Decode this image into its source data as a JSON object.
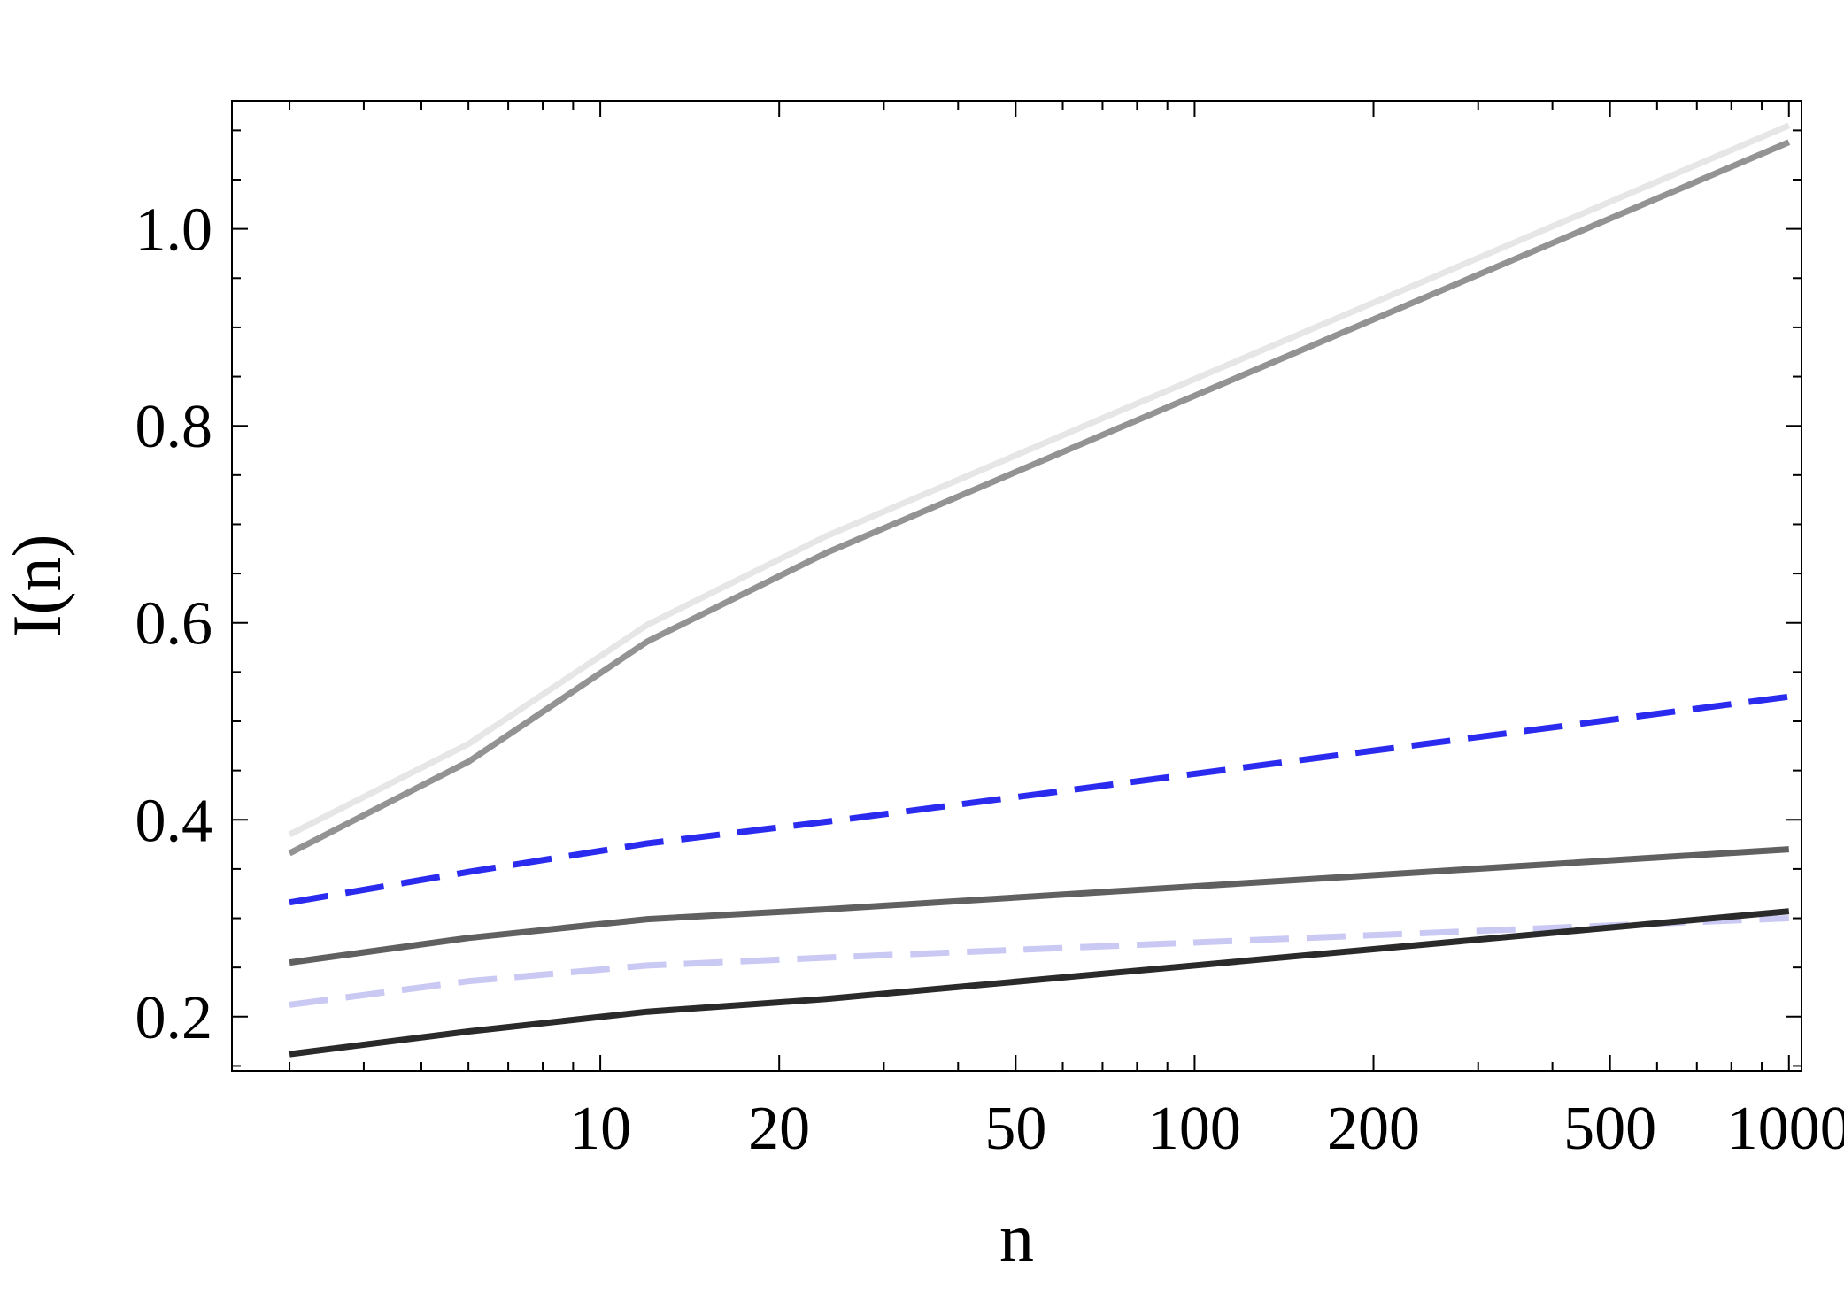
{
  "chart_data": {
    "type": "line",
    "title": "",
    "xlabel": "n",
    "ylabel": "I(n)",
    "x_scale": "log",
    "xlim": [
      2.4,
      1050
    ],
    "ylim": [
      0.145,
      1.13
    ],
    "grid": false,
    "x_ticks": [
      {
        "value": 10,
        "label": "10"
      },
      {
        "value": 20,
        "label": "20"
      },
      {
        "value": 50,
        "label": "50"
      },
      {
        "value": 100,
        "label": "100"
      },
      {
        "value": 200,
        "label": "200"
      },
      {
        "value": 500,
        "label": "500"
      },
      {
        "value": 1000,
        "label": "1000"
      }
    ],
    "y_ticks": [
      {
        "value": 0.2,
        "label": "0.2"
      },
      {
        "value": 0.4,
        "label": "0.4"
      },
      {
        "value": 0.6,
        "label": "0.6"
      },
      {
        "value": 0.8,
        "label": "0.8"
      },
      {
        "value": 1.0,
        "label": "1.0"
      }
    ],
    "x": [
      3,
      6,
      12,
      24,
      1000
    ],
    "series": [
      {
        "values": [
          0.385,
          0.477,
          0.598,
          0.688,
          1.105
        ],
        "color": "#e6e6e6",
        "dashed": false
      },
      {
        "values": [
          0.366,
          0.459,
          0.581,
          0.671,
          1.088
        ],
        "color": "#939393",
        "dashed": false
      },
      {
        "values": [
          0.316,
          0.347,
          0.376,
          0.398,
          0.525
        ],
        "color": "#2b2bf0",
        "dashed": true
      },
      {
        "values": [
          0.255,
          0.28,
          0.299,
          0.309,
          0.37
        ],
        "color": "#606060",
        "dashed": false
      },
      {
        "values": [
          0.212,
          0.236,
          0.252,
          0.26,
          0.3
        ],
        "color": "#c9c9f4",
        "dashed": true
      },
      {
        "values": [
          0.162,
          0.185,
          0.205,
          0.218,
          0.307
        ],
        "color": "#2a2a2a",
        "dashed": false
      }
    ]
  }
}
